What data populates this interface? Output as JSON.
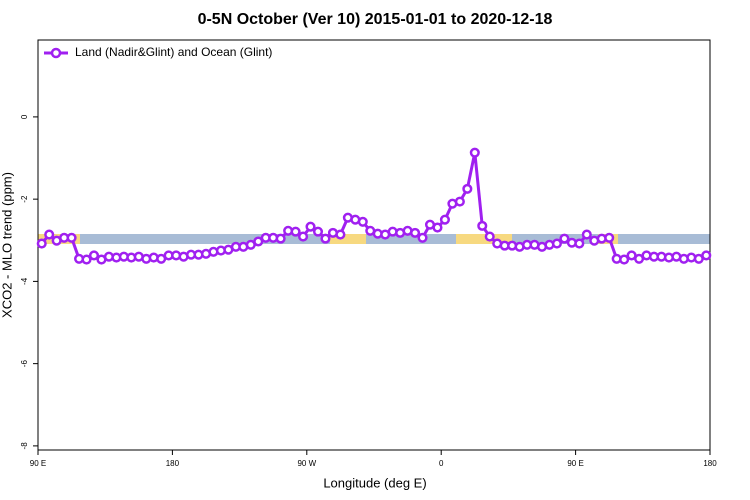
{
  "chart_data": {
    "type": "line",
    "title": "0-5N October (Ver 10)   2015-01-01 to 2020-12-18",
    "x_label": "Longitude (deg E)",
    "y_label": "XCO2 - MLO trend (ppm)",
    "legend": "top-left",
    "xlim": [
      90,
      540
    ],
    "xticks": [
      {
        "value": 90,
        "label": "90 E"
      },
      {
        "value": 180,
        "label": "180"
      },
      {
        "value": 270,
        "label": "90 W"
      },
      {
        "value": 360,
        "label": "0"
      },
      {
        "value": 450,
        "label": "90 E"
      },
      {
        "value": 540,
        "label": "180"
      }
    ],
    "ylim": [
      -8.1,
      1.87
    ],
    "yticks": [
      0,
      -2,
      -4,
      -6,
      -8
    ],
    "x": [
      92.5,
      97.5,
      102.5,
      107.5,
      112.5,
      117.5,
      122.5,
      127.5,
      132.5,
      137.5,
      142.5,
      147.5,
      152.5,
      157.5,
      162.5,
      167.5,
      172.5,
      177.5,
      182.5,
      187.5,
      192.5,
      197.5,
      202.5,
      207.5,
      212.5,
      217.5,
      222.5,
      227.5,
      232.5,
      237.5,
      242.5,
      247.5,
      252.5,
      257.5,
      262.5,
      267.5,
      272.5,
      277.5,
      282.5,
      287.5,
      292.5,
      297.5,
      302.5,
      307.5,
      312.5,
      317.5,
      322.5,
      327.5,
      332.5,
      337.5,
      342.5,
      347.5,
      352.5,
      357.5,
      362.5,
      367.5,
      372.5,
      377.5,
      382.5,
      387.5,
      392.5,
      397.5,
      402.5,
      407.5,
      412.5,
      417.5,
      422.5,
      427.5,
      432.5,
      437.5,
      442.5,
      447.5,
      452.5,
      457.5,
      462.5,
      467.5,
      472.5,
      477.5,
      482.5,
      487.5,
      492.5,
      497.5,
      502.5,
      507.5,
      512.5,
      517.5,
      522.5,
      527.5,
      532.5,
      537.5
    ],
    "series": [
      {
        "name": "Land (Nadir&Glint) and Ocean (Glint)",
        "color": "#a020f0",
        "values": [
          -3.08,
          -2.86,
          -3.01,
          -2.94,
          -2.94,
          -3.45,
          -3.47,
          -3.37,
          -3.47,
          -3.4,
          -3.42,
          -3.4,
          -3.42,
          -3.4,
          -3.45,
          -3.42,
          -3.45,
          -3.37,
          -3.37,
          -3.4,
          -3.35,
          -3.35,
          -3.33,
          -3.28,
          -3.25,
          -3.23,
          -3.16,
          -3.16,
          -3.11,
          -3.03,
          -2.94,
          -2.94,
          -2.96,
          -2.77,
          -2.79,
          -2.91,
          -2.67,
          -2.79,
          -2.96,
          -2.82,
          -2.86,
          -2.45,
          -2.5,
          -2.55,
          -2.77,
          -2.84,
          -2.86,
          -2.79,
          -2.82,
          -2.77,
          -2.82,
          -2.94,
          -2.62,
          -2.69,
          -2.5,
          -2.11,
          -2.06,
          -1.75,
          -0.87,
          -2.65,
          -2.91,
          -3.08,
          -3.13,
          -3.13,
          -3.16,
          -3.11,
          -3.11,
          -3.16,
          -3.11,
          -3.08,
          -2.96,
          -3.06,
          -3.08,
          -2.86,
          -3.01,
          -2.96,
          -2.94,
          -3.45,
          -3.47,
          -3.37,
          -3.45,
          -3.37,
          -3.4,
          -3.4,
          -3.42,
          -3.4,
          -3.45,
          -3.42,
          -3.45,
          -3.37
        ]
      }
    ]
  }
}
